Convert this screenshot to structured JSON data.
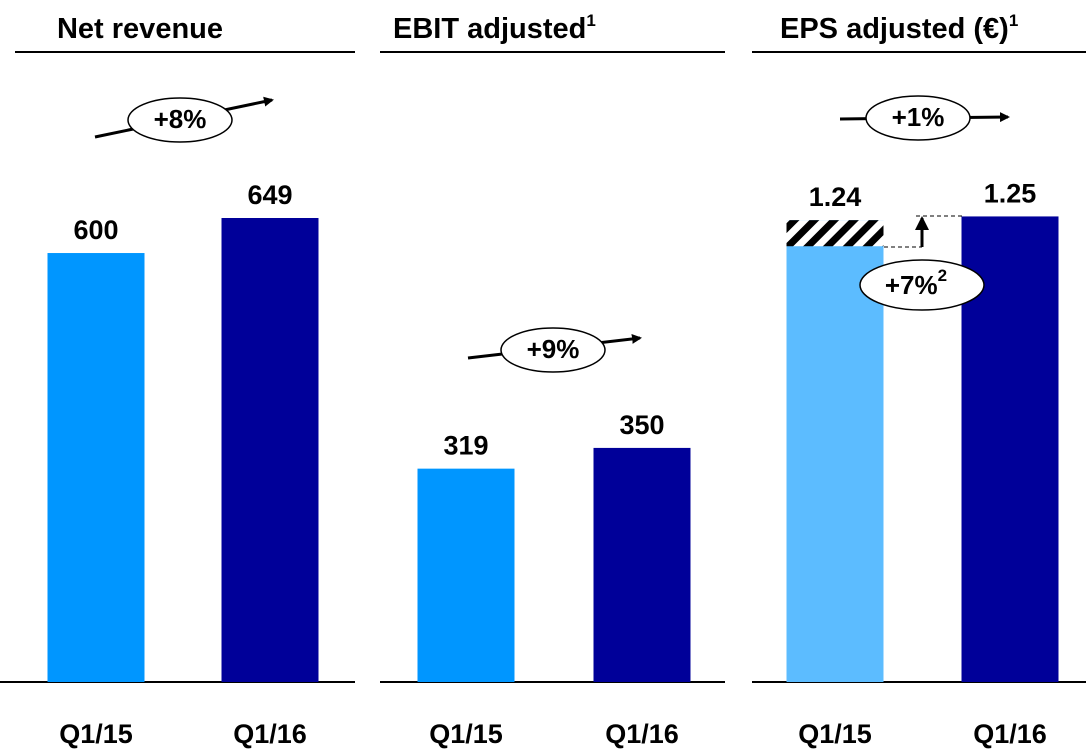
{
  "chart_data": [
    {
      "type": "bar",
      "title": "Net revenue",
      "annotation": "+8%",
      "categories": [
        "Q1/15",
        "Q1/16"
      ],
      "values": [
        600,
        649
      ],
      "colors": [
        "#0096ff",
        "#000099"
      ],
      "ylim": [
        0,
        870
      ]
    },
    {
      "type": "bar",
      "title": "EBIT adjusted",
      "title_footnote": "1",
      "annotation": "+9%",
      "categories": [
        "Q1/15",
        "Q1/16"
      ],
      "values": [
        319,
        350
      ],
      "colors": [
        "#0096ff",
        "#000099"
      ],
      "ylim": [
        0,
        930
      ]
    },
    {
      "type": "bar",
      "title": "EPS adjusted (€)",
      "title_footnote": "1",
      "annotation": "+1%",
      "sub_annotation": "+7%",
      "sub_annotation_footnote": "2",
      "categories": [
        "Q1/15",
        "Q1/16"
      ],
      "values": [
        1.24,
        1.25
      ],
      "hatched": [
        0.07,
        null
      ],
      "colors": [
        "#5cbcff",
        "#000099"
      ],
      "ylim": [
        0,
        1.67
      ]
    }
  ]
}
